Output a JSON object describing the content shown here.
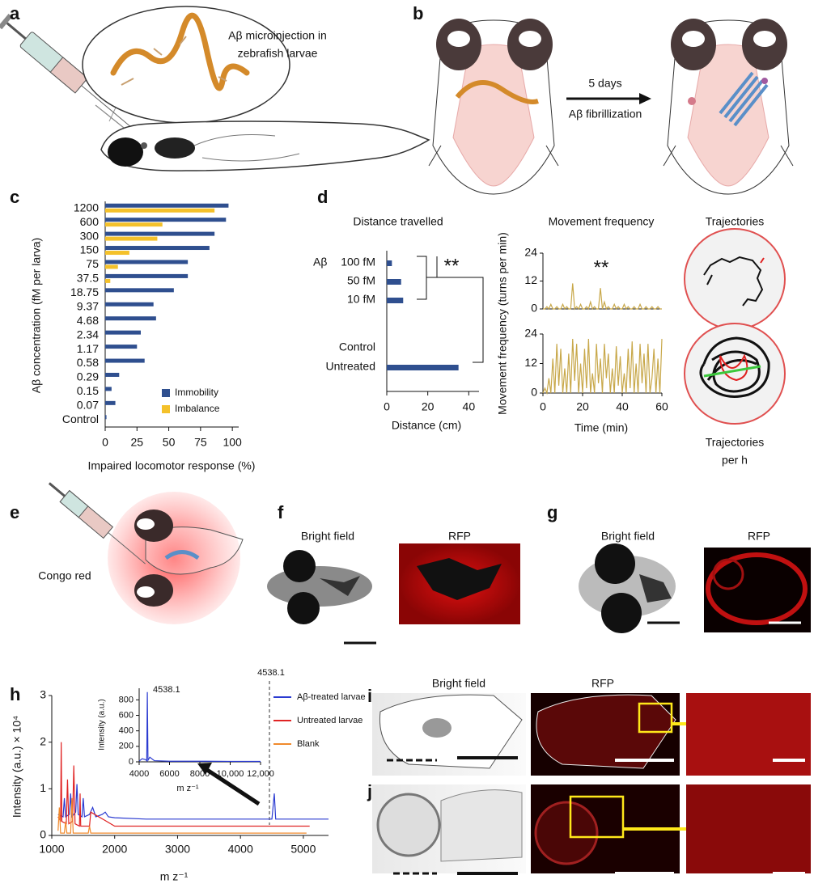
{
  "figure": {
    "panel_labels": [
      "a",
      "b",
      "c",
      "d",
      "e",
      "f",
      "g",
      "h",
      "i",
      "j"
    ],
    "panel_a": {
      "callout": [
        "Aβ microinjection in",
        "zebrafish larvae"
      ]
    },
    "panel_b": {
      "arrow_label_top": "5 days",
      "arrow_label_bottom": "Aβ fibrillization"
    },
    "panel_d": {
      "trajectories_title": "Trajectories",
      "trajectories_caption": [
        "Trajectories",
        "per h"
      ]
    },
    "panel_e": {
      "label": "Congo red"
    },
    "panel_f": {
      "left_title": "Bright field",
      "right_title": "RFP"
    },
    "panel_g": {
      "left_title": "Bright field",
      "right_title": "RFP"
    },
    "panel_i": {
      "left_title": "Bright field",
      "right_title": "RFP"
    }
  },
  "chart_data": [
    {
      "type": "barh",
      "ylabel": "Aβ concentration (fM per larva)",
      "xlabel": "Impaired locomotor response (%)",
      "categories": [
        "1200",
        "600",
        "300",
        "150",
        "75",
        "37.5",
        "18.75",
        "9.37",
        "4.68",
        "2.34",
        "1.17",
        "0.58",
        "0.29",
        "0.15",
        "0.07",
        "Control"
      ],
      "series": [
        {
          "name": "Immobility",
          "color": "#2f4f8f",
          "values": [
            97,
            95,
            86,
            82,
            65,
            65,
            54,
            38,
            40,
            28,
            25,
            31,
            11,
            5,
            8,
            1
          ]
        },
        {
          "name": "Imbalance",
          "color": "#f4c12a",
          "values": [
            86,
            45,
            41,
            19,
            10,
            4,
            0,
            0,
            0,
            0,
            0,
            0,
            0,
            0,
            0,
            0
          ]
        }
      ],
      "xlim": [
        0,
        105
      ],
      "xticks": [
        0,
        25,
        50,
        75,
        100
      ],
      "legend": "lower right"
    },
    {
      "type": "barh",
      "title": "Distance travelled",
      "xlabel": "Distance (cm)",
      "group_label": "Aβ",
      "annotation": "**",
      "categories": [
        "100 fM",
        "50 fM",
        "10 fM",
        "Control",
        "Untreated"
      ],
      "values": [
        2.5,
        7,
        8,
        0,
        35
      ],
      "color": "#2f4f8f",
      "xlim": [
        0,
        45
      ],
      "xticks": [
        0,
        20,
        40
      ]
    },
    {
      "type": "line",
      "title": "Movement frequency",
      "ylabel": "Movement frequency (turns per min)",
      "annotation": "**",
      "x": [
        0,
        1,
        2,
        3,
        4,
        5,
        6,
        7,
        8,
        9,
        10,
        11,
        12,
        13,
        14,
        15,
        16,
        17,
        18,
        19,
        20,
        21,
        22,
        23,
        24,
        25,
        26,
        27,
        28,
        29,
        30,
        31,
        32,
        33,
        34,
        35,
        36,
        37,
        38,
        39,
        40,
        41,
        42,
        43,
        44,
        45,
        46,
        47,
        48,
        49,
        50,
        51,
        52,
        53,
        54,
        55,
        56,
        57,
        58,
        59,
        60
      ],
      "series": [
        {
          "color": "#c8a84a",
          "values": [
            0,
            0,
            1,
            0,
            2,
            0,
            0,
            1,
            0,
            0,
            2,
            0,
            1,
            0,
            0,
            11,
            0,
            1,
            0,
            2,
            0,
            0,
            1,
            0,
            3,
            0,
            1,
            0,
            0,
            9,
            0,
            3,
            0,
            1,
            0,
            0,
            2,
            0,
            1,
            0,
            0,
            2,
            0,
            1,
            0,
            0,
            1,
            0,
            0,
            2,
            0,
            0,
            1,
            0,
            0,
            1,
            0,
            0,
            1,
            0,
            0
          ]
        }
      ],
      "xlim": [
        0,
        60
      ],
      "ylim": [
        0,
        24
      ],
      "yticks": [
        0,
        12,
        24
      ]
    },
    {
      "type": "line",
      "xlabel": "Time (min)",
      "x": [
        0,
        1,
        2,
        3,
        4,
        5,
        6,
        7,
        8,
        9,
        10,
        11,
        12,
        13,
        14,
        15,
        16,
        17,
        18,
        19,
        20,
        21,
        22,
        23,
        24,
        25,
        26,
        27,
        28,
        29,
        30,
        31,
        32,
        33,
        34,
        35,
        36,
        37,
        38,
        39,
        40,
        41,
        42,
        43,
        44,
        45,
        46,
        47,
        48,
        49,
        50,
        51,
        52,
        53,
        54,
        55,
        56,
        57,
        58,
        59,
        60
      ],
      "series": [
        {
          "color": "#c8a84a",
          "values": [
            0,
            2,
            0,
            6,
            0,
            14,
            0,
            20,
            3,
            18,
            0,
            10,
            0,
            16,
            0,
            22,
            5,
            20,
            0,
            12,
            0,
            18,
            2,
            22,
            0,
            8,
            0,
            20,
            4,
            14,
            0,
            20,
            6,
            16,
            0,
            10,
            0,
            19,
            3,
            15,
            0,
            8,
            0,
            18,
            2,
            21,
            0,
            12,
            0,
            20,
            4,
            16,
            0,
            20,
            0,
            6,
            18,
            0,
            14,
            0,
            22
          ]
        }
      ],
      "xlim": [
        0,
        60
      ],
      "ylim": [
        0,
        24
      ],
      "xticks": [
        0,
        20,
        40,
        60
      ],
      "yticks": [
        0,
        12,
        24
      ]
    },
    {
      "type": "line",
      "ylabel": "Intensity (a.u.) × 10⁴",
      "xlabel": "m z⁻¹",
      "annotation": "4538.1",
      "series": [
        {
          "name": "Aβ-treated larvae",
          "color": "#2b3bd1",
          "x": [
            1100,
            1180,
            1200,
            1220,
            1280,
            1300,
            1320,
            1380,
            1400,
            1420,
            1480,
            1500,
            1520,
            1600,
            1650,
            1700,
            1800,
            1850,
            1900,
            2000,
            2500,
            3000,
            4000,
            4500,
            4538.1,
            4560,
            5000,
            5400
          ],
          "values": [
            0.45,
            0.4,
            0.8,
            0.4,
            0.45,
            0.9,
            0.4,
            0.5,
            1.1,
            0.45,
            0.4,
            0.8,
            0.4,
            0.45,
            0.6,
            0.4,
            0.45,
            0.5,
            0.4,
            0.38,
            0.35,
            0.35,
            0.35,
            0.35,
            0.9,
            0.35,
            0.35,
            0.35
          ]
        },
        {
          "name": "Untreated larvae",
          "color": "#e02424",
          "x": [
            1100,
            1140,
            1150,
            1160,
            1230,
            1250,
            1270,
            1330,
            1350,
            1370,
            1440,
            1450,
            1460,
            1600,
            1620,
            2000,
            3000,
            4000,
            5100
          ],
          "values": [
            0.4,
            0.3,
            2.0,
            0.3,
            0.25,
            1.2,
            0.25,
            0.3,
            1.5,
            0.25,
            0.2,
            0.9,
            0.2,
            0.2,
            0.5,
            0.2,
            0.2,
            0.2,
            0.2
          ]
        },
        {
          "name": "Blank",
          "color": "#f08a2c",
          "x": [
            1100,
            1120,
            1140,
            1200,
            1220,
            1240,
            1300,
            1320,
            1340,
            1580,
            1600,
            1620,
            2000,
            3000,
            5050
          ],
          "values": [
            0.1,
            0.6,
            0.05,
            0.05,
            0.3,
            0.05,
            0.05,
            0.8,
            0.05,
            0.05,
            0.2,
            0.05,
            0.05,
            0.05,
            0.05
          ]
        }
      ],
      "xlim": [
        1000,
        5400
      ],
      "ylim": [
        0,
        3
      ],
      "xticks": [
        1000,
        2000,
        3000,
        4000,
        5000
      ],
      "yticks": [
        0,
        1,
        2,
        3
      ],
      "legend": "upper right"
    },
    {
      "type": "line",
      "ylabel": "Intensity (a.u.)",
      "xlabel": "m z⁻¹",
      "annotation": "4538.1",
      "series": [
        {
          "color": "#2b3bd1",
          "x": [
            4000,
            4200,
            4400,
            4500,
            4538.1,
            4580,
            4700,
            5000,
            6000,
            8000,
            10000,
            12000
          ],
          "values": [
            10,
            40,
            30,
            15,
            900,
            20,
            60,
            15,
            8,
            8,
            6,
            5
          ]
        }
      ],
      "xlim": [
        4000,
        12000
      ],
      "ylim": [
        0,
        950
      ],
      "xticks": [
        4000,
        6000,
        8000,
        {
          "value": 10000,
          "label": "10,000"
        },
        {
          "value": 12000,
          "label": "12,000"
        }
      ],
      "yticks": [
        0,
        200,
        400,
        600,
        800
      ]
    }
  ]
}
